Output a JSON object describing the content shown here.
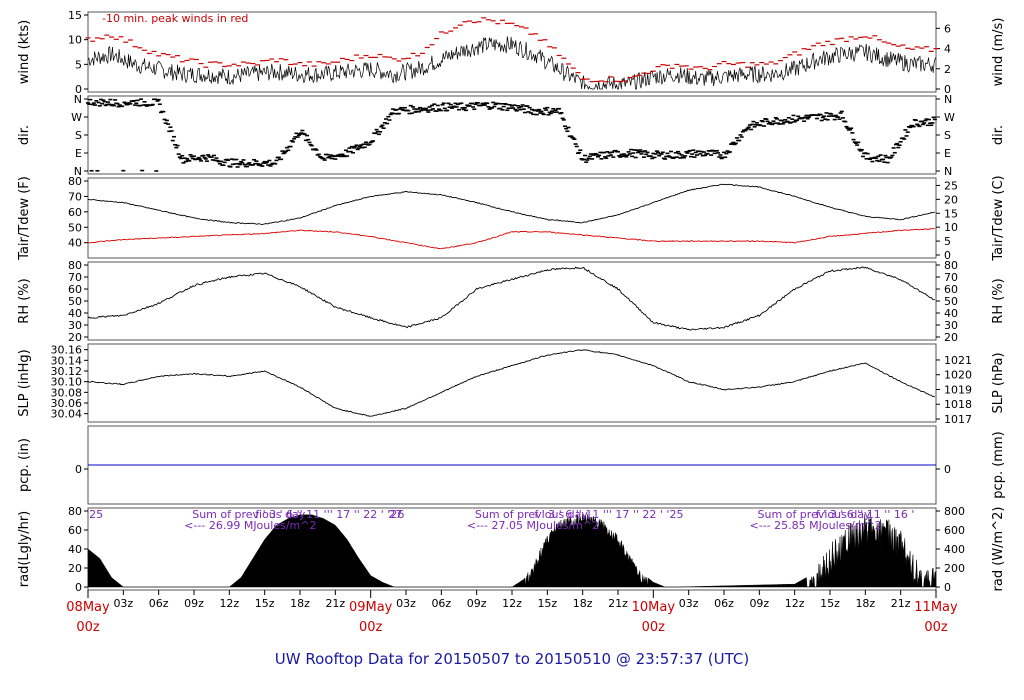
{
  "title": "UW Rooftop Data for 20150507  to  20150510 @ 23:57:37  (UTC)",
  "chart_data": {
    "type": "line",
    "panels": [
      {
        "id": "wind",
        "ylabel_left": "wind (kts)",
        "ylabel_right": "wind (m/s)",
        "left_ticks": [
          "0",
          "5",
          "10",
          "15"
        ],
        "right_ticks": [
          "0",
          "2",
          "4",
          "6"
        ],
        "ylim": [
          0,
          15
        ],
        "annotation": "-10 min. peak winds in red",
        "series": [
          {
            "kind": "wind-speed",
            "x": [
              0,
              2,
              4,
              6,
              8,
              10,
              12,
              14,
              16,
              18,
              20,
              22,
              24,
              26,
              28,
              30,
              32,
              34,
              36,
              38,
              40,
              42,
              44,
              46,
              48,
              50,
              52,
              54,
              56,
              58,
              60,
              62,
              64,
              66,
              68,
              70,
              72
            ],
            "values": [
              6,
              7,
              5,
              4,
              3,
              3,
              2.5,
              3,
              3.5,
              3,
              3,
              3.5,
              4,
              3,
              4,
              6,
              8,
              9,
              9,
              7,
              4,
              1,
              1,
              1,
              2.5,
              3,
              2,
              2.5,
              3,
              3,
              4,
              6,
              7,
              7.5,
              6,
              5,
              5
            ]
          },
          {
            "kind": "peak-gust",
            "values": [
              10,
              11,
              9,
              7,
              6,
              5,
              5,
              5,
              6,
              5,
              5,
              6,
              7,
              6,
              7,
              11,
              14,
              14,
              13,
              11,
              7,
              2,
              2,
              2,
              4,
              5,
              4,
              5,
              5,
              5,
              7,
              9,
              10,
              11,
              9,
              8,
              8
            ]
          }
        ]
      },
      {
        "id": "dir",
        "ylabel_left": "dir.",
        "ylabel_right": "dir.",
        "left_ticks": [
          "N",
          "E",
          "S",
          "W",
          "N"
        ],
        "right_ticks": [
          "N",
          "E",
          "S",
          "W",
          "N"
        ],
        "ylim": [
          0,
          360
        ],
        "series": [
          {
            "kind": "direction",
            "x": [
              0,
              2,
              4,
              6,
              8,
              10,
              12,
              14,
              16,
              18,
              20,
              22,
              24,
              26,
              28,
              30,
              32,
              34,
              36,
              38,
              40,
              42,
              44,
              46,
              48,
              50,
              52,
              54,
              56,
              58,
              60,
              62,
              64,
              66,
              68,
              70,
              72
            ],
            "values": [
              350,
              340,
              345,
              340,
              60,
              70,
              40,
              40,
              40,
              200,
              60,
              90,
              150,
              300,
              310,
              320,
              320,
              330,
              320,
              300,
              300,
              60,
              80,
              90,
              80,
              80,
              90,
              80,
              220,
              250,
              260,
              270,
              280,
              70,
              60,
              240,
              250
            ]
          }
        ]
      },
      {
        "id": "temp",
        "ylabel_left": "Tair/Tdew (F)",
        "ylabel_right": "Tair/Tdew (C)",
        "left_ticks": [
          "40",
          "50",
          "60",
          "70",
          "80"
        ],
        "right_ticks": [
          "0",
          "5",
          "10",
          "15",
          "20",
          "25"
        ],
        "ylim": [
          32,
          80
        ],
        "series": [
          {
            "kind": "air-temp",
            "x": [
              0,
              3,
              6,
              9,
              12,
              15,
              18,
              21,
              24,
              27,
              30,
              33,
              36,
              39,
              42,
              45,
              48,
              51,
              54,
              57,
              60,
              63,
              66,
              69,
              72
            ],
            "values": [
              68,
              66,
              61,
              56,
              53,
              52,
              56,
              64,
              70,
              73,
              71,
              66,
              60,
              55,
              53,
              58,
              66,
              74,
              78,
              76,
              70,
              63,
              57,
              55,
              60
            ]
          },
          {
            "kind": "dew-point",
            "values": [
              40,
              42,
              43,
              44,
              45,
              46,
              48,
              47,
              44,
              40,
              36,
              40,
              47,
              47,
              45,
              43,
              41,
              41,
              41,
              41,
              40,
              44,
              46,
              48,
              49
            ]
          }
        ]
      },
      {
        "id": "rh",
        "ylabel_left": "RH (%)",
        "ylabel_right": "RH (%)",
        "left_ticks": [
          "20",
          "30",
          "40",
          "50",
          "60",
          "70",
          "80"
        ],
        "right_ticks": [
          "20",
          "30",
          "40",
          "50",
          "60",
          "70",
          "80"
        ],
        "ylim": [
          20,
          80
        ],
        "series": [
          {
            "kind": "relative-humidity",
            "x": [
              0,
              3,
              6,
              9,
              12,
              15,
              18,
              21,
              24,
              27,
              30,
              33,
              36,
              39,
              42,
              45,
              48,
              51,
              54,
              57,
              60,
              63,
              66,
              69,
              72
            ],
            "values": [
              36,
              38,
              48,
              63,
              70,
              73,
              62,
              45,
              36,
              28,
              36,
              60,
              68,
              76,
              78,
              60,
              32,
              26,
              28,
              38,
              60,
              75,
              78,
              68,
              50
            ]
          }
        ]
      },
      {
        "id": "slp",
        "ylabel_left": "SLP (inHg)",
        "ylabel_right": "SLP (hPa)",
        "left_ticks": [
          "30.04",
          "30.06",
          "30.08",
          "30.10",
          "30.12",
          "30.14",
          "30.16"
        ],
        "right_ticks": [
          "1017",
          "1018",
          "1019",
          "1020",
          "1021"
        ],
        "ylim": [
          30.03,
          30.165
        ],
        "series": [
          {
            "kind": "sea-level-pressure",
            "x": [
              0,
              3,
              6,
              9,
              12,
              15,
              18,
              21,
              24,
              27,
              30,
              33,
              36,
              39,
              42,
              45,
              48,
              51,
              54,
              57,
              60,
              63,
              66,
              69,
              72
            ],
            "values": [
              30.1,
              30.095,
              30.11,
              30.115,
              30.11,
              30.12,
              30.09,
              30.05,
              30.035,
              30.05,
              30.08,
              30.11,
              30.13,
              30.15,
              30.16,
              30.15,
              30.13,
              30.1,
              30.085,
              30.09,
              30.1,
              30.12,
              30.135,
              30.1,
              30.07
            ]
          }
        ]
      },
      {
        "id": "pcp",
        "ylabel_left": "pcp. (in)",
        "ylabel_right": "pcp. (mm)",
        "left_ticks": [
          "0"
        ],
        "right_ticks": [
          "0"
        ],
        "series": [
          {
            "kind": "precip",
            "values": [
              0
            ]
          }
        ]
      },
      {
        "id": "rad",
        "ylabel_left": "rad(Lgly/hr)",
        "ylabel_right": "rad (W/m^2)",
        "left_ticks": [
          "0",
          "20",
          "40",
          "60",
          "80"
        ],
        "right_ticks": [
          "0",
          "200",
          "400",
          "600",
          "800"
        ],
        "ylim": [
          0,
          80
        ],
        "series": [
          {
            "kind": "solar-radiation",
            "x": [
              0,
              1,
              2,
              3,
              12,
              13,
              14,
              15,
              16,
              17,
              18,
              19,
              20,
              21,
              22,
              23,
              24,
              25,
              26,
              36,
              37,
              38,
              39,
              40,
              41,
              42,
              43,
              44,
              45,
              46,
              47,
              48,
              49,
              50,
              60,
              61,
              62,
              63,
              64,
              65,
              66,
              67,
              68,
              69,
              70,
              71,
              72
            ],
            "values": [
              40,
              30,
              10,
              0,
              0,
              10,
              30,
              50,
              65,
              72,
              76,
              76,
              72,
              65,
              50,
              30,
              12,
              5,
              0,
              0,
              8,
              30,
              55,
              70,
              75,
              78,
              75,
              68,
              55,
              35,
              15,
              5,
              0,
              0,
              3,
              10,
              25,
              45,
              60,
              72,
              78,
              75,
              72,
              60,
              40,
              15,
              30
            ]
          }
        ],
        "daily_sums": [
          {
            "label": "Sum of previous day",
            "value": "<--- 26.99 MJoules/m^2"
          },
          {
            "label": "Sum of previous day",
            "value": "<--- 27.05 MJoules/m^2"
          },
          {
            "label": "Sum of previous day",
            "value": "<--- 25.85 MJoules/m^2"
          }
        ],
        "hour_markers": [
          {
            "text": "25"
          },
          {
            "text": "f  ' 3  ' 6  '' 11 ''' 17  '' 22  ' '26"
          },
          {
            "text": "27"
          },
          {
            "text": "f  ' 3  ' 6  '' 11 ''' 17  '' 22  ' '25"
          },
          {
            "text": "f  ' 3  ' 6  '' 11 '' 16  '"
          }
        ]
      }
    ],
    "x_axis": {
      "hour_ticks": [
        "03z",
        "06z",
        "09z",
        "12z",
        "15z",
        "18z",
        "21z",
        "03z",
        "06z",
        "09z",
        "12z",
        "15z",
        "18z",
        "21z",
        "03z",
        "06z",
        "09z",
        "12z",
        "15z",
        "18z",
        "21z"
      ],
      "day_labels": [
        {
          "date": "08May",
          "time": "00z"
        },
        {
          "date": "09May",
          "time": "00z"
        },
        {
          "date": "10May",
          "time": "00z"
        },
        {
          "date": "11May",
          "time": "00z"
        }
      ],
      "xlim": [
        0,
        72
      ]
    },
    "colors": {
      "line": "#000000",
      "gust": "#cc0000",
      "dewpoint": "#dd0000",
      "precip": "#0000cc",
      "annotation": "#7a2ab8",
      "day": "#cc0000"
    }
  }
}
